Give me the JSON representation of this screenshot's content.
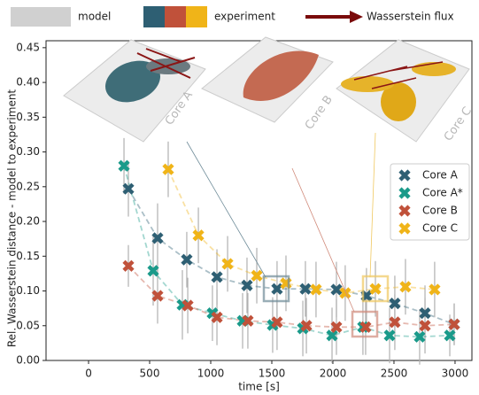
{
  "legend": {
    "model": "model",
    "experiment": "experiment",
    "flux": "Wasserstein flux"
  },
  "insets": [
    "Core A",
    "Core B",
    "Core C"
  ],
  "chart_data": {
    "type": "scatter",
    "xlabel": "time [s]",
    "ylabel": "Rel. Wasserstein distance - model to experiment",
    "xlim": [
      -348,
      3138
    ],
    "ylim": [
      0,
      0.46
    ],
    "xticks": [
      0,
      500,
      1000,
      1500,
      2000,
      2500,
      3000
    ],
    "yticks": [
      {
        "value": 0,
        "label": "0.00"
      },
      {
        "value": 0.05,
        "label": "0.05"
      },
      {
        "value": 0.1,
        "label": "0.10"
      },
      {
        "value": 0.15,
        "label": "0.15"
      },
      {
        "value": 0.2,
        "label": "0.20"
      },
      {
        "value": 0.25,
        "label": "0.25"
      },
      {
        "value": 0.3,
        "label": "0.30"
      },
      {
        "value": 0.35,
        "label": "0.35"
      },
      {
        "value": 0.4,
        "label": "0.40"
      },
      {
        "value": 0.45,
        "label": "0.45"
      }
    ],
    "series": [
      {
        "name": "Core A",
        "color": "#2e5f73",
        "x": [
          326,
          565,
          804,
          1051,
          1297,
          1543,
          1775,
          2029,
          2275,
          2507,
          2754,
          2993
        ],
        "values": [
          0.247,
          0.176,
          0.145,
          0.12,
          0.108,
          0.103,
          0.103,
          0.102,
          0.093,
          0.082,
          0.068,
          0.052
        ],
        "errors": [
          0.04,
          0.05,
          0.04,
          0.04,
          0.04,
          0.04,
          0.04,
          0.04,
          0.04,
          0.04,
          0.04,
          0.03
        ]
      },
      {
        "name": "Core A*",
        "color": "#1a9a8a",
        "x": [
          290,
          529,
          768,
          1014,
          1261,
          1507,
          1754,
          1993,
          2246,
          2464,
          2710,
          2957
        ],
        "values": [
          0.28,
          0.129,
          0.08,
          0.068,
          0.057,
          0.051,
          0.046,
          0.036,
          0.048,
          0.036,
          0.034,
          0.036
        ],
        "errors": [
          0.04,
          0.05,
          0.05,
          0.04,
          0.04,
          0.04,
          0.04,
          0.04,
          0.04,
          0.04,
          0.04,
          0.03
        ]
      },
      {
        "name": "Core B",
        "color": "#c0513a",
        "x": [
          326,
          565,
          812,
          1051,
          1304,
          1543,
          1783,
          2029,
          2268,
          2507,
          2754,
          2993
        ],
        "values": [
          0.136,
          0.093,
          0.079,
          0.062,
          0.057,
          0.055,
          0.05,
          0.048,
          0.048,
          0.055,
          0.05,
          0.052
        ],
        "errors": [
          0.03,
          0.04,
          0.04,
          0.04,
          0.04,
          0.04,
          0.04,
          0.04,
          0.04,
          0.04,
          0.04,
          0.03
        ]
      },
      {
        "name": "Core C",
        "color": "#f0b418",
        "x": [
          652,
          899,
          1138,
          1377,
          1616,
          1862,
          2101,
          2348,
          2594,
          2833
        ],
        "values": [
          0.275,
          0.18,
          0.139,
          0.122,
          0.111,
          0.102,
          0.097,
          0.103,
          0.106,
          0.102
        ],
        "errors": [
          0.04,
          0.04,
          0.04,
          0.04,
          0.04,
          0.04,
          0.04,
          0.04,
          0.04,
          0.04
        ]
      }
    ],
    "legend_position": "right"
  }
}
